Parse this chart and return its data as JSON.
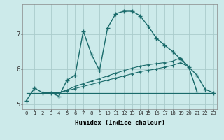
{
  "background_color": "#cceaea",
  "grid_color": "#aacccc",
  "line_color": "#1a6b6b",
  "xlabel": "Humidex (Indice chaleur)",
  "xlim": [
    -0.5,
    23.5
  ],
  "ylim": [
    4.85,
    7.85
  ],
  "yticks": [
    5,
    6,
    7
  ],
  "xticks": [
    0,
    1,
    2,
    3,
    4,
    5,
    6,
    7,
    8,
    9,
    10,
    11,
    12,
    13,
    14,
    15,
    16,
    17,
    18,
    19,
    20,
    21,
    22,
    23
  ],
  "curve1_x": [
    0,
    1,
    2,
    3,
    4,
    5,
    6,
    7,
    8,
    9,
    10,
    11,
    12,
    13,
    14,
    15,
    16,
    17,
    18,
    19,
    20,
    21,
    22,
    23
  ],
  "curve1_y": [
    5.1,
    5.45,
    5.32,
    5.32,
    5.22,
    5.68,
    5.82,
    7.08,
    6.42,
    5.95,
    7.18,
    7.58,
    7.65,
    7.65,
    7.52,
    7.22,
    6.88,
    6.68,
    6.5,
    6.28,
    6.05,
    5.82,
    5.42,
    5.32
  ],
  "curve2_x": [
    0,
    23
  ],
  "curve2_y": [
    5.32,
    5.32
  ],
  "curve3_x": [
    2,
    3,
    4,
    5,
    6,
    7,
    8,
    9,
    10,
    11,
    12,
    13,
    14,
    15,
    16,
    17,
    18,
    19,
    20,
    21
  ],
  "curve3_y": [
    5.32,
    5.32,
    5.32,
    5.38,
    5.44,
    5.5,
    5.56,
    5.62,
    5.68,
    5.74,
    5.8,
    5.86,
    5.92,
    5.96,
    6.0,
    6.05,
    6.1,
    6.18,
    6.05,
    5.35
  ],
  "curve4_x": [
    2,
    3,
    4,
    5,
    6,
    7,
    8,
    9,
    10,
    11,
    12,
    13,
    14,
    15,
    16,
    17,
    18,
    19,
    20,
    21
  ],
  "curve4_y": [
    5.32,
    5.32,
    5.32,
    5.4,
    5.5,
    5.58,
    5.65,
    5.72,
    5.8,
    5.88,
    5.95,
    6.02,
    6.08,
    6.12,
    6.15,
    6.18,
    6.22,
    6.32,
    6.05,
    5.35
  ]
}
